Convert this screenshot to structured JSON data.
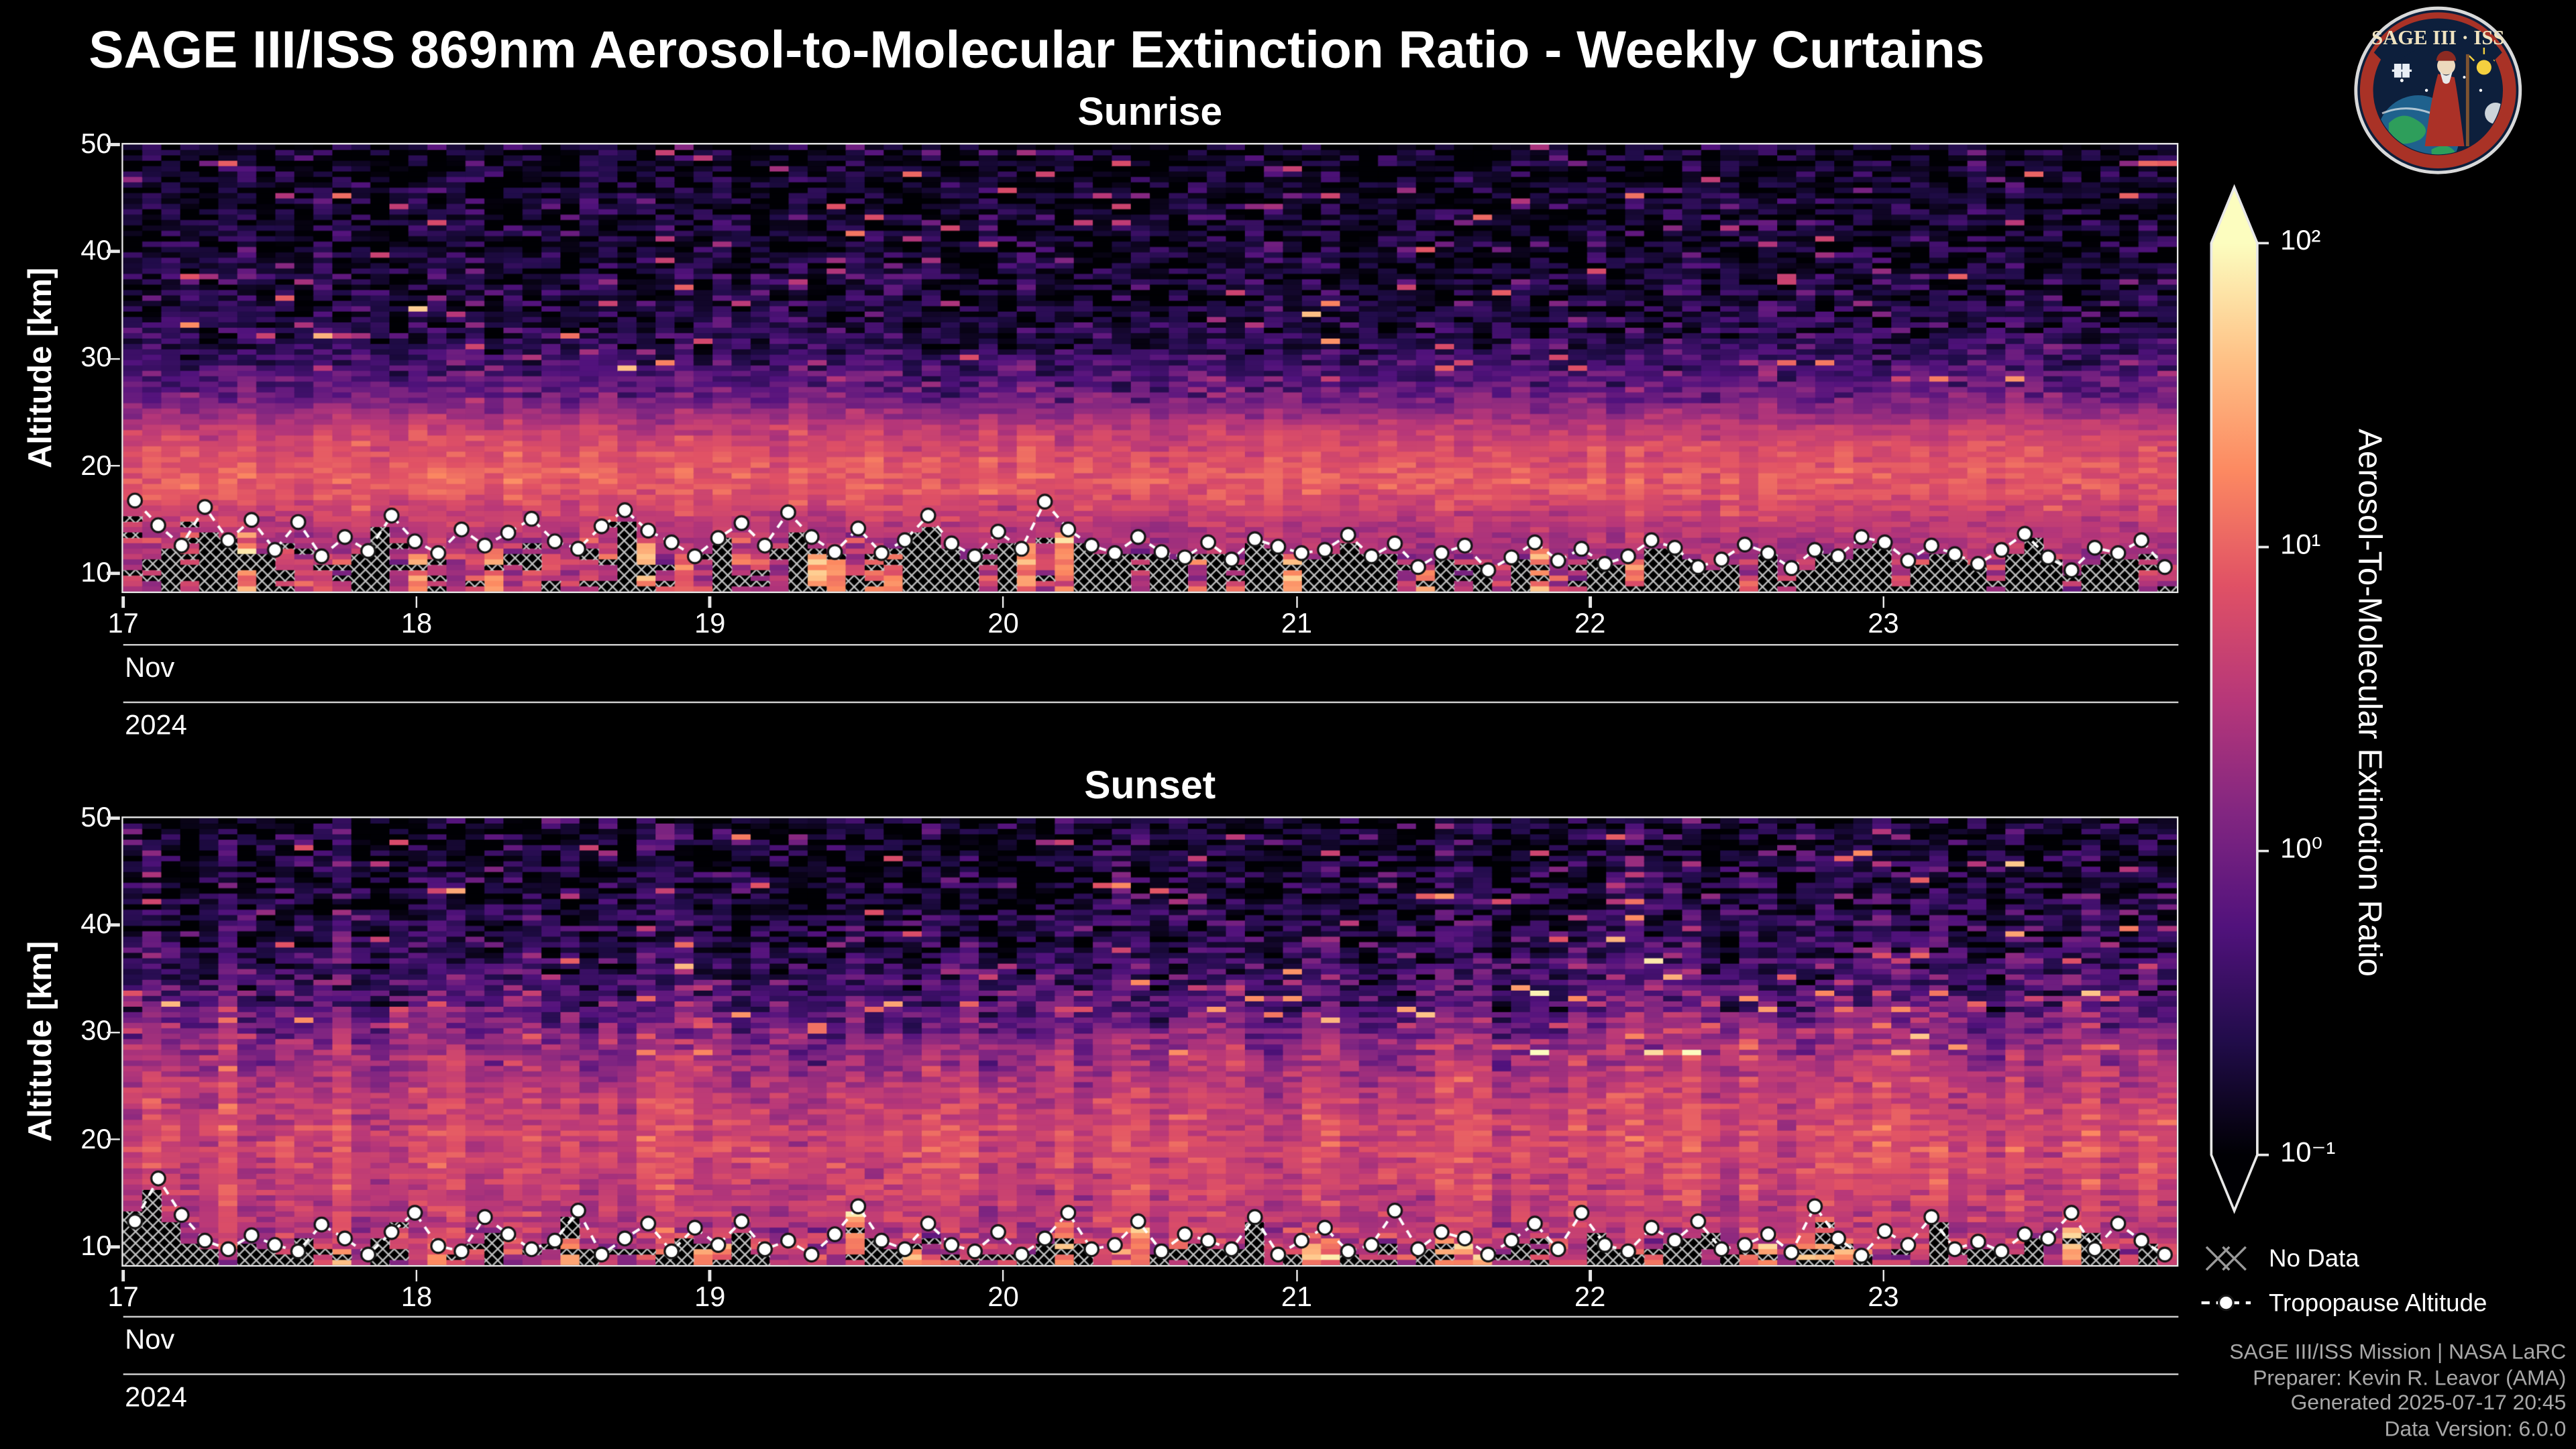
{
  "header": {
    "title": "SAGE III/ISS 869nm Aerosol-to-Molecular Extinction Ratio - Weekly Curtains"
  },
  "logo": {
    "title": "SAGE III · ISS"
  },
  "colorbar": {
    "label": "Aerosol-To-Molecular Extinction Ratio",
    "scale": "log",
    "range": [
      0.1,
      100
    ],
    "tick_labels": [
      "10²",
      "10¹",
      "10⁰",
      "10⁻¹"
    ],
    "tick_values": [
      100,
      10,
      1,
      0.1
    ],
    "colormap": "magma",
    "colormap_stops": [
      [
        0,
        "#000004"
      ],
      [
        0.125,
        "#210c4a"
      ],
      [
        0.25,
        "#51127c"
      ],
      [
        0.375,
        "#822681"
      ],
      [
        0.5,
        "#b73779"
      ],
      [
        0.625,
        "#e05165"
      ],
      [
        0.75,
        "#fc8961"
      ],
      [
        0.875,
        "#fec287"
      ],
      [
        1,
        "#fcfdbf"
      ]
    ]
  },
  "legend": {
    "no_data_label": "No Data",
    "tropopause_label": "Tropopause Altitude"
  },
  "footer": {
    "lines": [
      "SAGE III/ISS Mission | NASA LaRC",
      "Preparer: Kevin R. Leavor (AMA)",
      "Generated 2025-07-17 20:45",
      "Data Version: 6.0.0"
    ]
  },
  "chart_data": [
    {
      "type": "heatmap",
      "title": "Sunrise",
      "ylabel": "Altitude [km]",
      "y_ticks": [
        10,
        20,
        30,
        40,
        50
      ],
      "ylim": [
        8.3,
        50
      ],
      "x_tick_labels": [
        "17",
        "18",
        "19",
        "20",
        "21",
        "22",
        "23"
      ],
      "x_month_label": "Nov",
      "x_year_label": "2024",
      "x_span_days": 7,
      "value_units": "aerosol-to-molecular extinction ratio, log color scale 0.1 to 100",
      "mean_profile_alt_vs_ratio": [
        [
          50,
          0.13
        ],
        [
          44,
          0.14
        ],
        [
          40,
          0.16
        ],
        [
          36,
          0.18
        ],
        [
          32,
          0.24
        ],
        [
          30,
          0.38
        ],
        [
          28,
          0.65
        ],
        [
          26,
          1.2
        ],
        [
          24,
          3.5
        ],
        [
          22,
          6.0
        ],
        [
          20,
          8.5
        ],
        [
          18,
          8.0
        ],
        [
          16,
          5.0
        ],
        [
          14,
          3.0
        ],
        [
          12,
          2.5
        ],
        [
          10,
          4.0
        ],
        [
          8.3,
          5.0
        ]
      ],
      "tropopause_altitude_km": [
        16.8,
        14.5,
        12.6,
        16.2,
        13.1,
        15.0,
        12.2,
        14.8,
        11.6,
        13.4,
        12.1,
        15.4,
        13.0,
        11.9,
        14.1,
        12.6,
        13.8,
        15.1,
        13.0,
        12.3,
        14.4,
        15.9,
        14.0,
        12.9,
        11.6,
        13.3,
        14.7,
        12.6,
        15.7,
        13.4,
        12.0,
        14.2,
        11.9,
        13.1,
        15.4,
        12.8,
        11.6,
        13.9,
        12.3,
        16.7,
        14.1,
        12.6,
        11.9,
        13.4,
        12.0,
        11.5,
        12.9,
        11.3,
        13.2,
        12.5,
        11.9,
        12.2,
        13.6,
        11.6,
        12.8,
        10.6,
        11.9,
        12.6,
        10.3,
        11.5,
        12.9,
        11.2,
        12.3,
        10.9,
        11.6,
        13.1,
        12.4,
        10.6,
        11.3,
        12.7,
        11.9,
        10.5,
        12.2,
        11.6,
        13.4,
        12.9,
        11.2,
        12.6,
        11.8,
        10.9,
        12.2,
        13.7,
        11.5,
        10.3,
        12.4,
        11.9,
        13.1,
        10.6
      ],
      "no_data_regions": "hatched cells below the tropopause altitude line"
    },
    {
      "type": "heatmap",
      "title": "Sunset",
      "ylabel": "Altitude [km]",
      "y_ticks": [
        10,
        20,
        30,
        40,
        50
      ],
      "ylim": [
        8.3,
        50
      ],
      "x_tick_labels": [
        "17",
        "18",
        "19",
        "20",
        "21",
        "22",
        "23"
      ],
      "x_month_label": "Nov",
      "x_year_label": "2024",
      "x_span_days": 7,
      "value_units": "aerosol-to-molecular extinction ratio, log color scale 0.1 to 100",
      "mean_profile_alt_vs_ratio": [
        [
          50,
          0.14
        ],
        [
          44,
          0.17
        ],
        [
          40,
          0.22
        ],
        [
          36,
          0.35
        ],
        [
          32,
          0.7
        ],
        [
          30,
          1.3
        ],
        [
          28,
          2.0
        ],
        [
          26,
          3.0
        ],
        [
          24,
          4.0
        ],
        [
          22,
          5.0
        ],
        [
          20,
          5.5
        ],
        [
          18,
          5.5
        ],
        [
          16,
          4.5
        ],
        [
          14,
          3.8
        ],
        [
          12,
          3.4
        ],
        [
          10,
          4.0
        ],
        [
          8.3,
          4.5
        ]
      ],
      "tropopause_altitude_km": [
        12.4,
        16.4,
        13.0,
        10.6,
        9.8,
        11.1,
        10.2,
        9.6,
        12.1,
        10.8,
        9.3,
        11.4,
        13.2,
        10.1,
        9.6,
        12.8,
        11.2,
        9.8,
        10.6,
        13.4,
        9.3,
        10.8,
        12.2,
        9.6,
        11.8,
        10.2,
        12.4,
        9.8,
        10.6,
        9.3,
        11.2,
        13.8,
        10.6,
        9.8,
        12.2,
        10.2,
        9.6,
        11.4,
        9.3,
        10.8,
        13.2,
        9.8,
        10.2,
        12.4,
        9.6,
        11.2,
        10.6,
        9.8,
        12.8,
        9.3,
        10.6,
        11.8,
        9.6,
        10.2,
        13.4,
        9.8,
        11.4,
        10.8,
        9.3,
        10.6,
        12.2,
        9.8,
        13.2,
        10.2,
        9.6,
        11.8,
        10.6,
        12.4,
        9.8,
        10.2,
        11.2,
        9.5,
        13.8,
        10.8,
        9.2,
        11.5,
        10.2,
        12.8,
        9.8,
        10.5,
        9.6,
        11.2,
        10.8,
        13.2,
        9.8,
        12.2,
        10.6,
        9.3
      ],
      "no_data_regions": "hatched cells below the tropopause altitude line"
    }
  ]
}
